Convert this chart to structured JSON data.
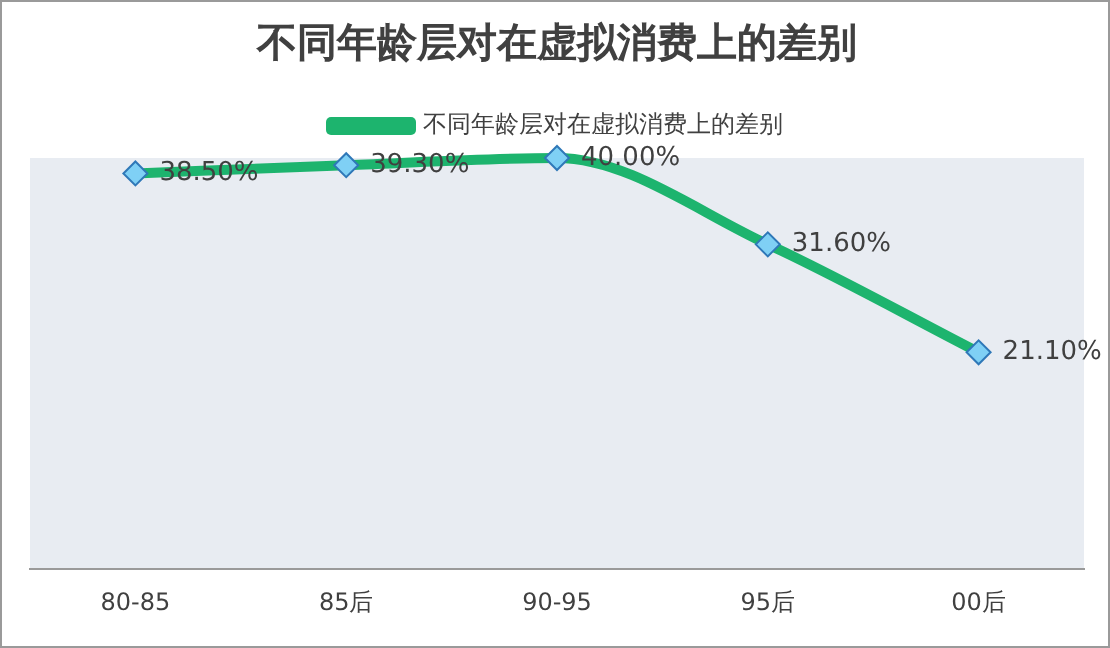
{
  "chart_data": {
    "type": "line",
    "title": "不同年龄层对在虚拟消费上的差别",
    "categories": [
      "80-85",
      "85后",
      "90-95",
      "95后",
      "00后"
    ],
    "series": [
      {
        "name": "不同年龄层对在虚拟消费上的差别",
        "color": "#1db46e",
        "values": [
          38.5,
          39.3,
          40.0,
          31.6,
          21.1
        ],
        "value_labels": [
          "38.50%",
          "39.30%",
          "40.00%",
          "31.60%",
          "21.10%"
        ]
      }
    ],
    "marker": "diamond",
    "legend": "top",
    "grid": false,
    "tick_labels": "x"
  }
}
